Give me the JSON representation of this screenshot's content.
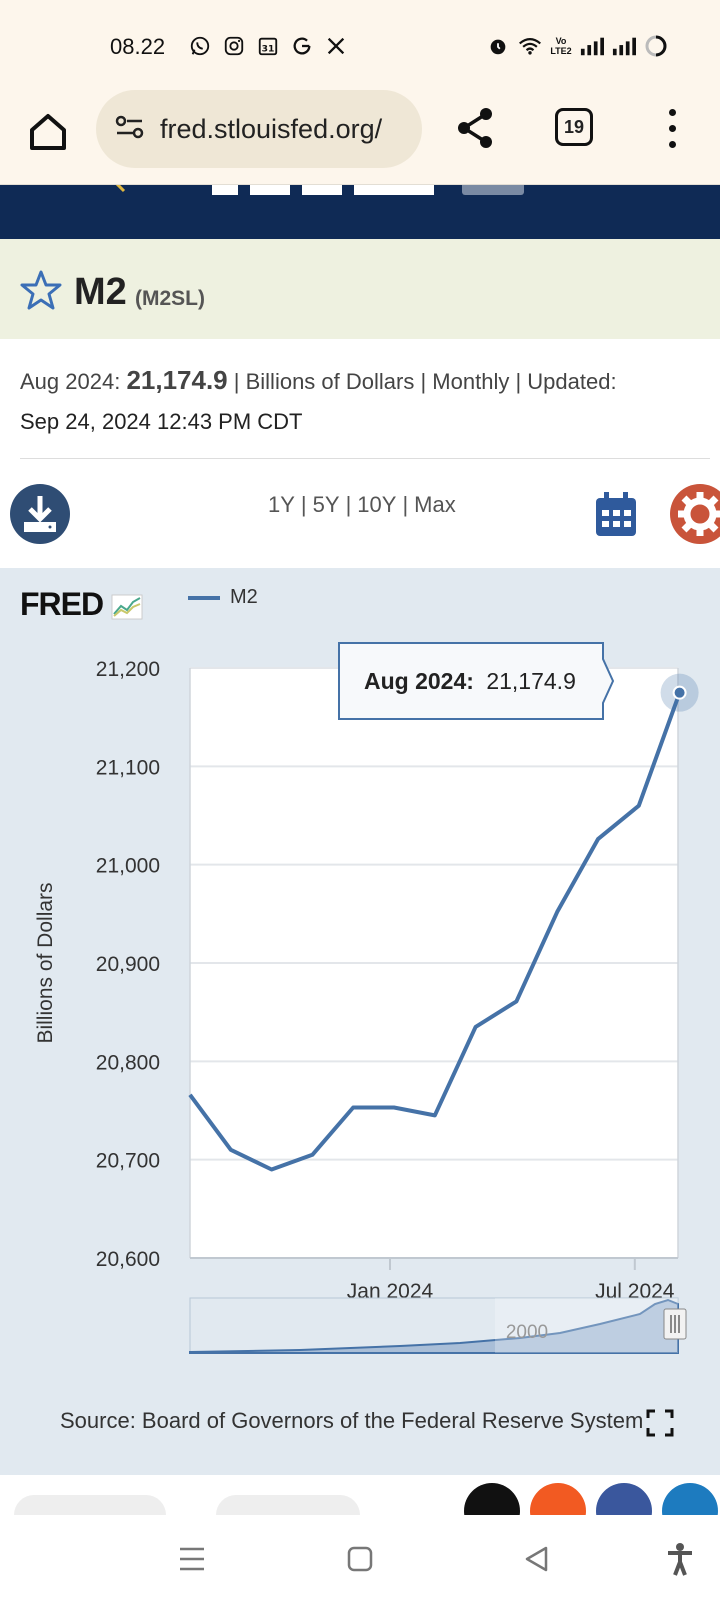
{
  "status_bar": {
    "time": "08.22",
    "left_icons": [
      "whatsapp-icon",
      "instagram-icon",
      "calendar-31-icon",
      "g-icon",
      "x-icon"
    ],
    "right_icons": [
      "alarm-icon",
      "wifi-icon",
      "volte-icon",
      "signal-icon",
      "signal-icon",
      "battery-icon"
    ],
    "calendar_day": "31",
    "volte_label": "Vo LTE2"
  },
  "browser": {
    "url": "fred.stlouisfed.org/",
    "tab_count": "19"
  },
  "series": {
    "title": "M2",
    "id": "(M2SL)",
    "date_label": "Aug 2024:",
    "value": "21,174.9",
    "units": "Billions of Dollars",
    "frequency": "Monthly",
    "updated_label": "Updated:",
    "updated": "Sep 24, 2024 12:43 PM CDT"
  },
  "controls": {
    "ranges": [
      "1Y",
      "5Y",
      "10Y",
      "Max"
    ]
  },
  "chart_data": {
    "type": "line",
    "logo": "FRED",
    "ylabel": "Billions of Dollars",
    "yticks": [
      "21,200",
      "21,100",
      "21,000",
      "20,900",
      "20,800",
      "20,700",
      "20,600"
    ],
    "ylim": [
      20600,
      21200
    ],
    "xticks": [
      "Jan 2024",
      "Jul 2024"
    ],
    "series": [
      {
        "name": "M2",
        "color": "#4572a7",
        "x": [
          "2023-08",
          "2023-09",
          "2023-10",
          "2023-11",
          "2023-12",
          "2024-01",
          "2024-02",
          "2024-03",
          "2024-04",
          "2024-05",
          "2024-06",
          "2024-07",
          "2024-08"
        ],
        "values": [
          20766,
          20710,
          20690,
          20705,
          20753,
          20753,
          20745,
          20835,
          20861,
          20952,
          21026,
          21060,
          21174.9
        ]
      }
    ],
    "tooltip": {
      "date": "Aug 2024:",
      "value": "21,174.9"
    },
    "navigator_label": "2000",
    "grid": true,
    "source": "Source: Board of Governors of the Federal Reserve System"
  },
  "colors": {
    "accent": "#4572a7",
    "header": "#0f2a55",
    "settings": "#c9543a"
  }
}
